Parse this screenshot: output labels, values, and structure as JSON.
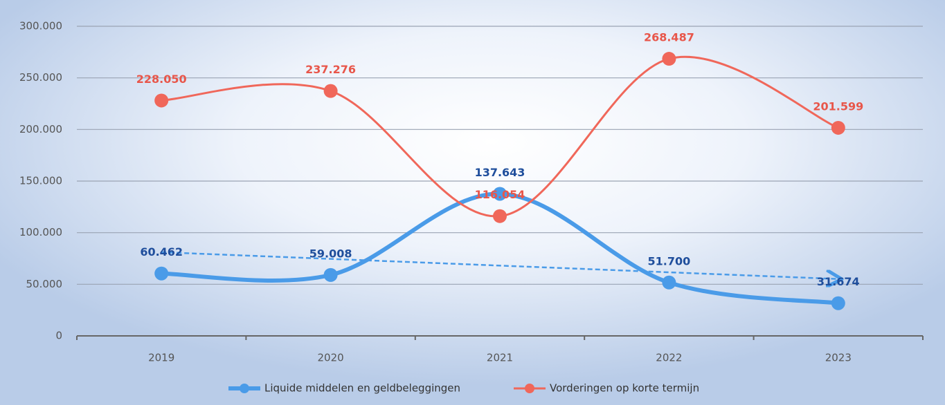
{
  "chart_data": {
    "type": "line",
    "categories": [
      "2019",
      "2020",
      "2021",
      "2022",
      "2023"
    ],
    "series": [
      {
        "name": "Liquide middelen en geldbeleggingen",
        "color": "#4a9be8",
        "label_color": "#1f4e9c",
        "trendline": "linear",
        "values": [
          60462,
          59008,
          137643,
          51700,
          31674
        ],
        "value_labels": [
          "60.462",
          "59.008",
          "137.643",
          "51.700",
          "31.674"
        ]
      },
      {
        "name": "Vorderingen op korte termijn",
        "color": "#f0675a",
        "label_color": "#e8564a",
        "values": [
          228050,
          237276,
          116054,
          268487,
          201599
        ],
        "value_labels": [
          "228.050",
          "237.276",
          "116.054",
          "268.487",
          "201.599"
        ]
      }
    ],
    "ylim": [
      0,
      300000
    ],
    "yticks": [
      0,
      {
        "value": 50000,
        "label": "50.000"
      },
      {
        "value": 100000,
        "label": "100.000"
      },
      {
        "value": 150000,
        "label": "150.000"
      },
      {
        "value": 200000,
        "label": "200.000"
      },
      {
        "value": 250000,
        "label": "250.000"
      },
      {
        "value": 300000,
        "label": "300.000"
      }
    ],
    "grid": true,
    "legend": "bottom",
    "smooth": true
  }
}
